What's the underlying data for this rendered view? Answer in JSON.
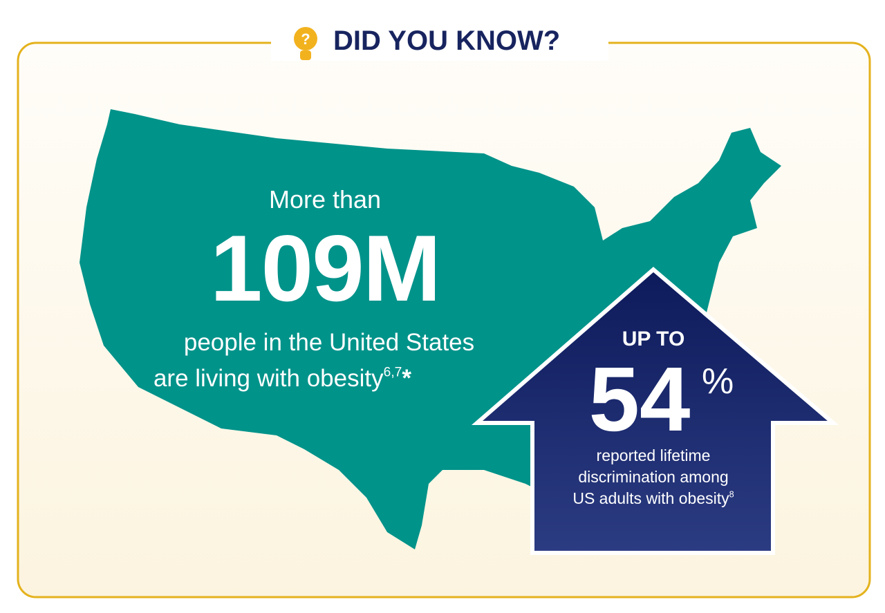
{
  "header": {
    "icon": "?",
    "title": "DID YOU KNOW?"
  },
  "stat1": {
    "lead": "More than",
    "value": "109M",
    "lines": [
      "people in the United States",
      "are living with obesity"
    ],
    "footnote": "6,7",
    "mark": "*"
  },
  "stat2": {
    "lead": "UP TO",
    "value": "54",
    "unit": "%",
    "lines": [
      "reported lifetime",
      "discrimination among",
      "US adults with obesity"
    ],
    "footnote": "8"
  }
}
